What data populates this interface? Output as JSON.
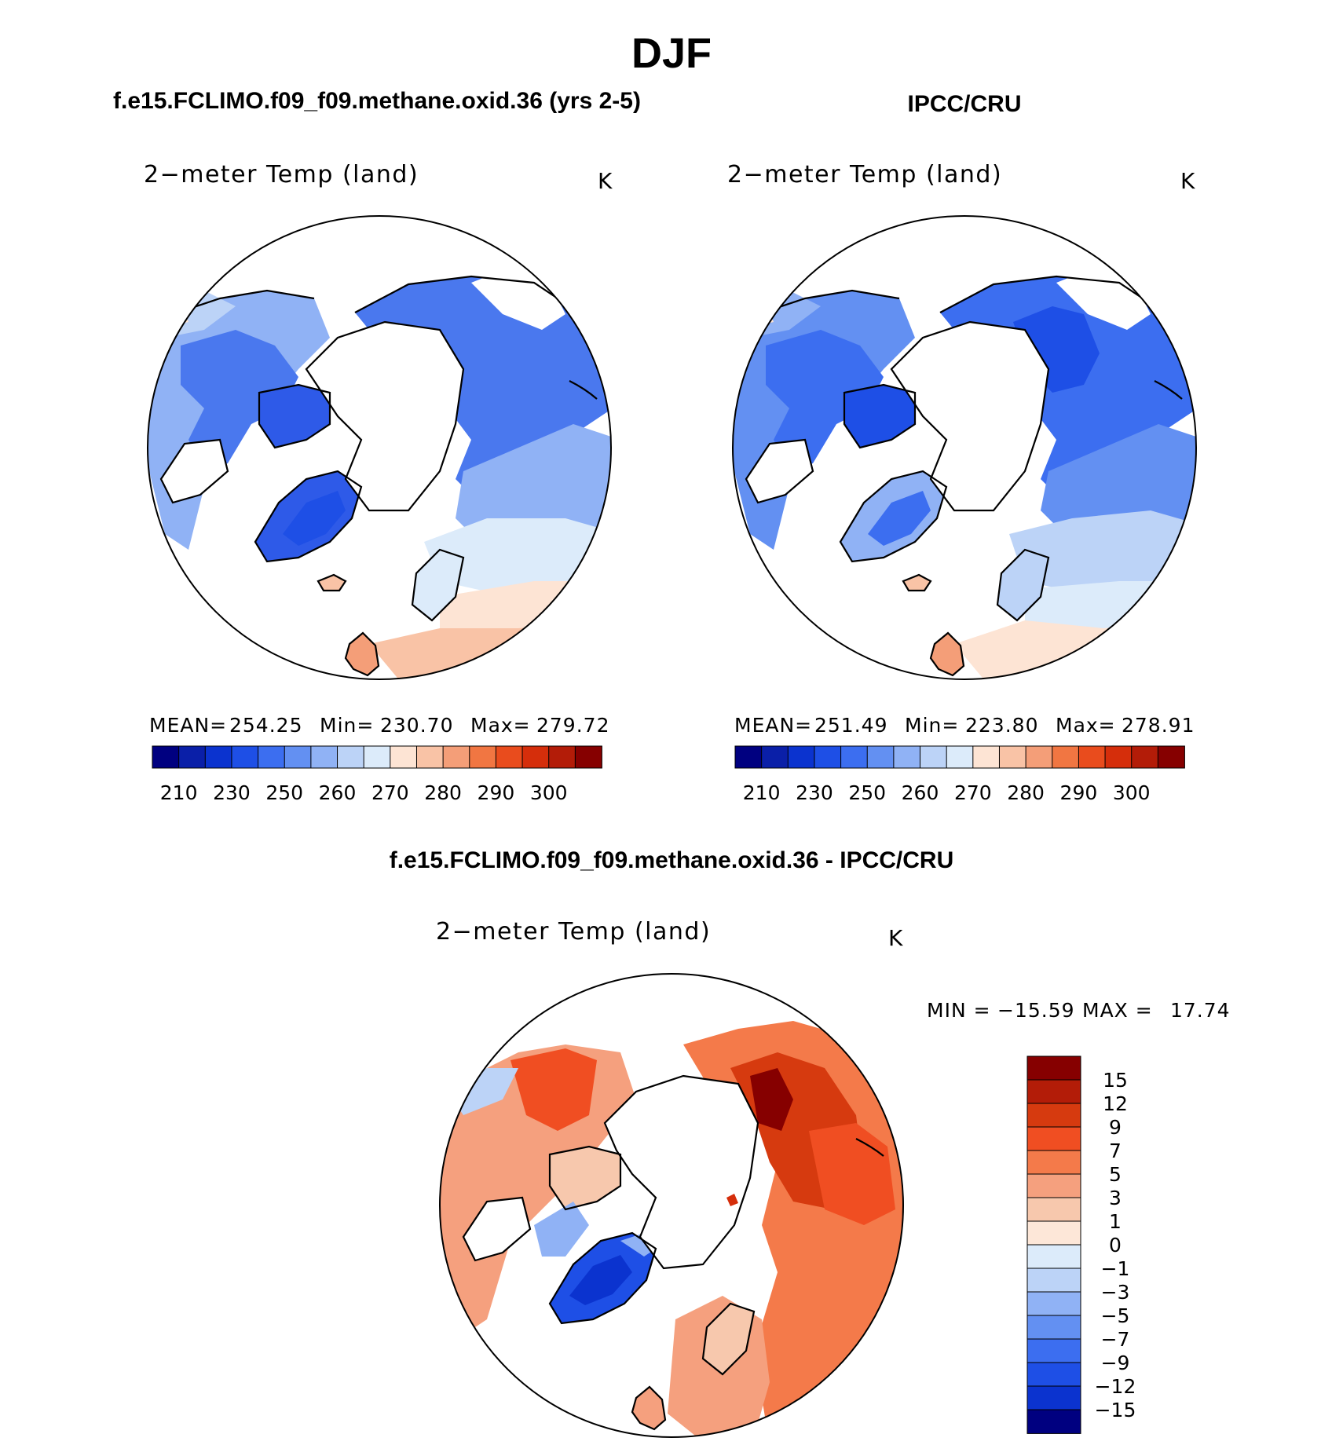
{
  "chart_data": {
    "type": "heatmap",
    "projection": "north-polar-stereographic",
    "title": "DJF",
    "variable": "2−meter Temp (land)",
    "units": "K",
    "panels": [
      {
        "id": "model",
        "heading": "f.e15.FCLIMO.f09_f09.methane.oxid.36 (yrs 2-5)",
        "plot_title": "2−meter Temp (land)",
        "units": "K",
        "stats": {
          "mean_label": "MEAN=",
          "mean": "254.25",
          "min_label": "Min=",
          "min": "230.70",
          "max_label": "Max=",
          "max": "279.72"
        }
      },
      {
        "id": "obs",
        "heading": "IPCC/CRU",
        "plot_title": "2−meter Temp (land)",
        "units": "K",
        "stats": {
          "mean_label": "MEAN=",
          "mean": "251.49",
          "min_label": "Min=",
          "min": "223.80",
          "max_label": "Max=",
          "max": "278.91"
        }
      },
      {
        "id": "diff",
        "heading": "f.e15.FCLIMO.f09_f09.methane.oxid.36 - IPCC/CRU",
        "plot_title": "2−meter Temp (land)",
        "units": "K",
        "stats": {
          "min_label": "MIN =",
          "min": "−15.59",
          "max_label": "MAX =",
          "max": "17.74"
        }
      }
    ],
    "abs_colorbar": {
      "labels": [
        "210",
        "230",
        "250",
        "260",
        "270",
        "280",
        "290",
        "300"
      ],
      "colors": [
        "#000080",
        "#0a1fa8",
        "#0b33cf",
        "#1e4fe6",
        "#3c6ef0",
        "#6390f2",
        "#90b2f5",
        "#bcd3f7",
        "#dcebfa",
        "#fde4d4",
        "#f9c3a6",
        "#f49e78",
        "#f17642",
        "#e94c1d",
        "#d52e0b",
        "#b31c08",
        "#860000"
      ]
    },
    "diff_colorbar": {
      "levels": [
        "15",
        "12",
        "9",
        "7",
        "5",
        "3",
        "1",
        "0",
        "−1",
        "−3",
        "−5",
        "−7",
        "−9",
        "−12",
        "−15"
      ],
      "colors": [
        "#860000",
        "#b31c08",
        "#d63a0f",
        "#f04e22",
        "#f47a4a",
        "#f5a07e",
        "#f7c8ad",
        "#fde7d8",
        "#dcebfa",
        "#bcd3f7",
        "#90b2f5",
        "#6390f2",
        "#3c6ef0",
        "#1e4fe6",
        "#0b33cf",
        "#000080"
      ]
    }
  }
}
